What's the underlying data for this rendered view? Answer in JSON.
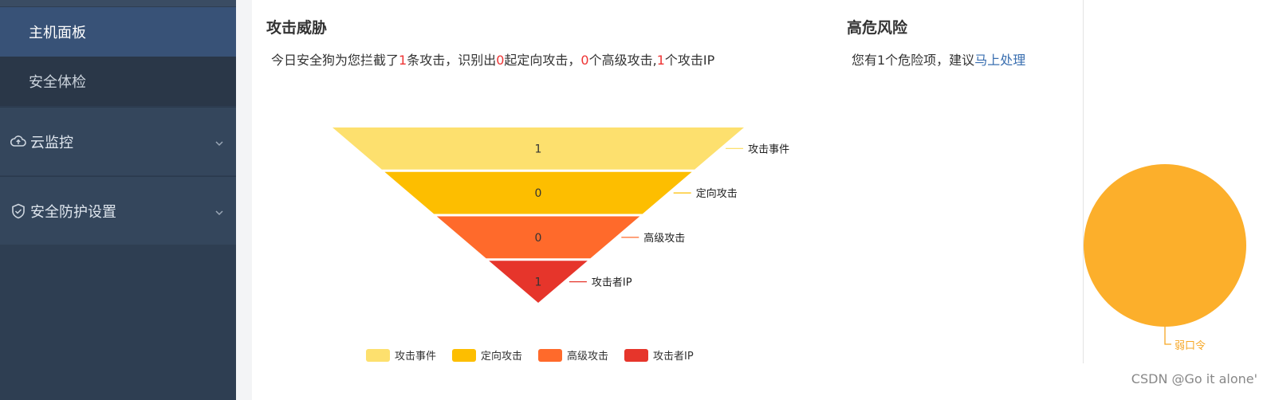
{
  "sidebar": {
    "items": [
      {
        "label": "主机面板",
        "icon": ""
      },
      {
        "label": "安全体检",
        "icon": ""
      },
      {
        "label": "云监控",
        "icon": "cloud-icon"
      },
      {
        "label": "安全防护设置",
        "icon": "shield-icon"
      }
    ]
  },
  "threat": {
    "title": "攻击威胁",
    "summary": {
      "p1": "今日安全狗为您拦截了",
      "n1": "1",
      "p2": "条攻击，识别出",
      "n2": "0",
      "p3": "起定向攻击，",
      "n3": "0",
      "p4": "个高级攻击,",
      "n4": "1",
      "p5": "个攻击IP"
    }
  },
  "risk": {
    "title": "高危风险",
    "summary_text": "您有1个危险项，建议",
    "link": "马上处理"
  },
  "watermark": "CSDN @Go it alone'",
  "colors": {
    "c1": "#fde06e",
    "c2": "#fdbe00",
    "c3": "#ff6a2b",
    "c4": "#e6352b",
    "pie": "#fcaf2b",
    "pie_label": "#f6a623"
  },
  "chart_data": [
    {
      "type": "funnel",
      "categories": [
        "攻击事件",
        "定向攻击",
        "高级攻击",
        "攻击者IP"
      ],
      "values": [
        1,
        0,
        0,
        1
      ],
      "legend": [
        "攻击事件",
        "定向攻击",
        "高级攻击",
        "攻击者IP"
      ],
      "legend_position": "bottom"
    },
    {
      "type": "pie",
      "categories": [
        "弱口令"
      ],
      "values": [
        1
      ]
    }
  ]
}
